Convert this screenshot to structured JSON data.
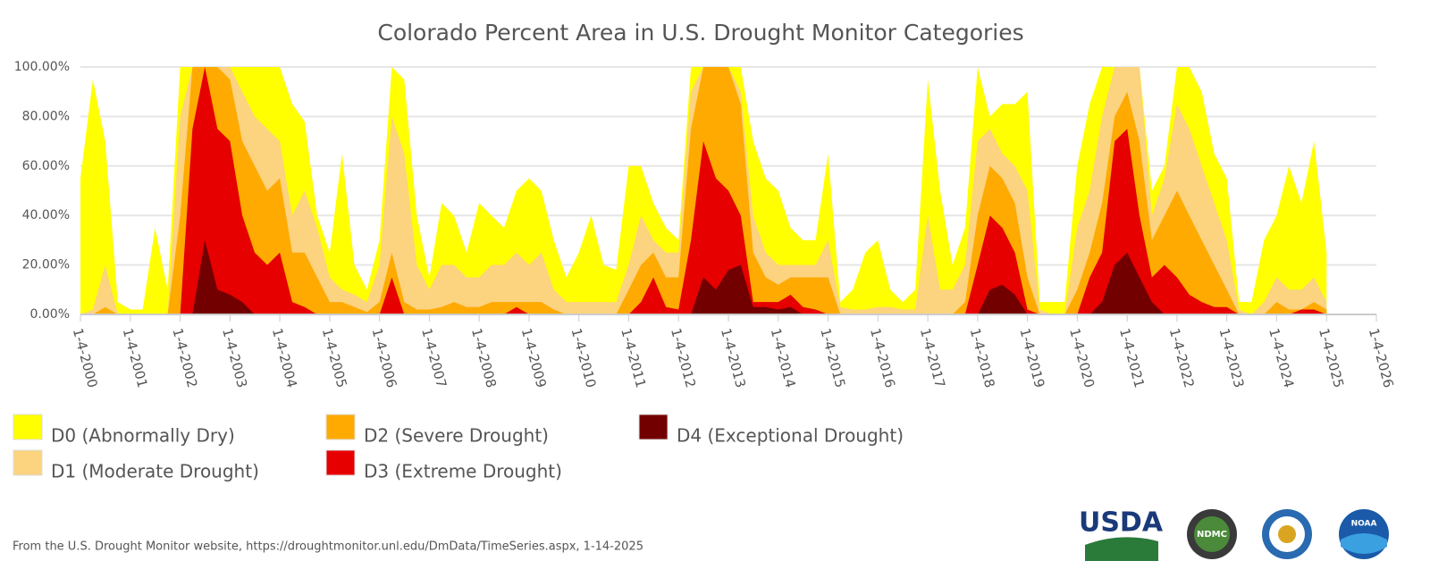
{
  "chart_data": {
    "type": "area",
    "title": "Colorado Percent Area in U.S. Drought Monitor Categories",
    "x": [
      "2000-01-04",
      "2000-04-04",
      "2000-07-04",
      "2000-10-04",
      "2001-01-04",
      "2001-04-04",
      "2001-07-04",
      "2001-10-04",
      "2002-01-04",
      "2002-04-04",
      "2002-07-04",
      "2002-10-04",
      "2003-01-04",
      "2003-04-04",
      "2003-07-04",
      "2003-10-04",
      "2004-01-04",
      "2004-04-04",
      "2004-07-04",
      "2004-10-04",
      "2005-01-04",
      "2005-04-04",
      "2005-07-04",
      "2005-10-04",
      "2006-01-04",
      "2006-04-04",
      "2006-07-04",
      "2006-10-04",
      "2007-01-04",
      "2007-04-04",
      "2007-07-04",
      "2007-10-04",
      "2008-01-04",
      "2008-04-04",
      "2008-07-04",
      "2008-10-04",
      "2009-01-04",
      "2009-04-04",
      "2009-07-04",
      "2009-10-04",
      "2010-01-04",
      "2010-04-04",
      "2010-07-04",
      "2010-10-04",
      "2011-01-04",
      "2011-04-04",
      "2011-07-04",
      "2011-10-04",
      "2012-01-04",
      "2012-04-04",
      "2012-07-04",
      "2012-10-04",
      "2013-01-04",
      "2013-04-04",
      "2013-07-04",
      "2013-10-04",
      "2014-01-04",
      "2014-04-04",
      "2014-07-04",
      "2014-10-04",
      "2015-01-04",
      "2015-04-04",
      "2015-07-04",
      "2015-10-04",
      "2016-01-04",
      "2016-04-04",
      "2016-07-04",
      "2016-10-04",
      "2017-01-04",
      "2017-04-04",
      "2017-07-04",
      "2017-10-04",
      "2018-01-04",
      "2018-04-04",
      "2018-07-04",
      "2018-10-04",
      "2019-01-04",
      "2019-04-04",
      "2019-07-04",
      "2019-10-04",
      "2020-01-04",
      "2020-04-04",
      "2020-07-04",
      "2020-10-04",
      "2021-01-04",
      "2021-04-04",
      "2021-07-04",
      "2021-10-04",
      "2022-01-04",
      "2022-04-04",
      "2022-07-04",
      "2022-10-04",
      "2023-01-04",
      "2023-04-04",
      "2023-07-04",
      "2023-10-04",
      "2024-01-04",
      "2024-04-04",
      "2024-07-04",
      "2024-10-04",
      "2025-01-04"
    ],
    "series": [
      {
        "name": "D0 (Abnormally Dry)",
        "color": "#ffff00",
        "values": [
          55,
          95,
          70,
          5,
          2,
          2,
          35,
          10,
          100,
          100,
          100,
          100,
          100,
          100,
          100,
          100,
          100,
          85,
          78,
          40,
          25,
          65,
          20,
          10,
          30,
          100,
          95,
          40,
          15,
          45,
          40,
          25,
          45,
          40,
          35,
          50,
          55,
          50,
          30,
          15,
          25,
          40,
          20,
          18,
          60,
          60,
          45,
          35,
          30,
          100,
          100,
          100,
          100,
          100,
          70,
          55,
          50,
          35,
          30,
          30,
          65,
          5,
          10,
          25,
          30,
          10,
          5,
          10,
          95,
          50,
          20,
          35,
          100,
          80,
          85,
          85,
          90,
          5,
          5,
          5,
          60,
          85,
          100,
          100,
          100,
          100,
          50,
          60,
          100,
          100,
          90,
          65,
          55,
          5,
          5,
          30,
          40,
          60,
          45,
          70,
          25
        ]
      },
      {
        "name": "D1 (Moderate Drought)",
        "color": "#fcd37f",
        "values": [
          0,
          2,
          20,
          0,
          0,
          0,
          0,
          0,
          80,
          100,
          100,
          100,
          100,
          90,
          80,
          75,
          70,
          40,
          50,
          35,
          15,
          10,
          8,
          5,
          20,
          80,
          65,
          20,
          10,
          20,
          20,
          15,
          15,
          20,
          20,
          25,
          20,
          25,
          10,
          5,
          5,
          5,
          5,
          5,
          20,
          40,
          30,
          25,
          25,
          90,
          100,
          100,
          100,
          90,
          40,
          25,
          20,
          20,
          20,
          20,
          30,
          3,
          2,
          2,
          3,
          3,
          2,
          2,
          40,
          10,
          10,
          20,
          70,
          75,
          65,
          60,
          50,
          2,
          0,
          0,
          35,
          50,
          80,
          100,
          100,
          100,
          40,
          55,
          85,
          75,
          60,
          45,
          30,
          2,
          0,
          5,
          15,
          10,
          10,
          15,
          5
        ]
      },
      {
        "name": "D2 (Severe Drought)",
        "color": "#ffaa00",
        "values": [
          0,
          0,
          3,
          0,
          0,
          0,
          0,
          0,
          40,
          100,
          100,
          100,
          95,
          70,
          60,
          50,
          55,
          25,
          25,
          15,
          5,
          5,
          3,
          1,
          5,
          25,
          5,
          2,
          2,
          3,
          5,
          3,
          3,
          5,
          5,
          5,
          5,
          5,
          2,
          0,
          0,
          0,
          0,
          0,
          10,
          20,
          25,
          15,
          15,
          75,
          100,
          100,
          100,
          85,
          25,
          15,
          12,
          15,
          15,
          15,
          15,
          0,
          0,
          0,
          0,
          0,
          0,
          0,
          0,
          0,
          0,
          5,
          40,
          60,
          55,
          45,
          15,
          0,
          0,
          0,
          10,
          25,
          45,
          80,
          90,
          70,
          30,
          40,
          50,
          40,
          30,
          20,
          10,
          0,
          0,
          0,
          5,
          2,
          2,
          5,
          2
        ]
      },
      {
        "name": "D3 (Extreme Drought)",
        "color": "#e60000",
        "values": [
          0,
          0,
          0,
          0,
          0,
          0,
          0,
          0,
          0,
          75,
          100,
          75,
          70,
          40,
          25,
          20,
          25,
          5,
          3,
          0,
          0,
          0,
          0,
          0,
          0,
          15,
          0,
          0,
          0,
          0,
          0,
          0,
          0,
          0,
          0,
          3,
          0,
          0,
          0,
          0,
          0,
          0,
          0,
          0,
          0,
          5,
          15,
          3,
          2,
          30,
          70,
          55,
          50,
          40,
          5,
          5,
          5,
          8,
          3,
          2,
          0,
          0,
          0,
          0,
          0,
          0,
          0,
          0,
          0,
          0,
          0,
          0,
          20,
          40,
          35,
          25,
          2,
          0,
          0,
          0,
          0,
          15,
          25,
          70,
          75,
          40,
          15,
          20,
          15,
          8,
          5,
          3,
          3,
          0,
          0,
          0,
          0,
          0,
          2,
          2,
          0
        ]
      },
      {
        "name": "D4 (Exceptional Drought)",
        "color": "#730000",
        "values": [
          0,
          0,
          0,
          0,
          0,
          0,
          0,
          0,
          0,
          0,
          30,
          10,
          8,
          5,
          0,
          0,
          0,
          0,
          0,
          0,
          0,
          0,
          0,
          0,
          0,
          0,
          0,
          0,
          0,
          0,
          0,
          0,
          0,
          0,
          0,
          0,
          0,
          0,
          0,
          0,
          0,
          0,
          0,
          0,
          0,
          0,
          0,
          0,
          0,
          0,
          15,
          10,
          18,
          20,
          3,
          3,
          2,
          3,
          0,
          0,
          0,
          0,
          0,
          0,
          0,
          0,
          0,
          0,
          0,
          0,
          0,
          0,
          0,
          10,
          12,
          8,
          0,
          0,
          0,
          0,
          0,
          0,
          5,
          20,
          25,
          15,
          5,
          0,
          0,
          0,
          0,
          0,
          0,
          0,
          0,
          0,
          0,
          0,
          0,
          0,
          0
        ]
      }
    ],
    "xlim": [
      "2000-01-04",
      "2026-01-04"
    ],
    "xticks": [
      {
        "value": "2000-01-04",
        "label": "1-4-2000"
      },
      {
        "value": "2001-01-04",
        "label": "1-4-2001"
      },
      {
        "value": "2002-01-04",
        "label": "1-4-2002"
      },
      {
        "value": "2003-01-04",
        "label": "1-4-2003"
      },
      {
        "value": "2004-01-04",
        "label": "1-4-2004"
      },
      {
        "value": "2005-01-04",
        "label": "1-4-2005"
      },
      {
        "value": "2006-01-04",
        "label": "1-4-2006"
      },
      {
        "value": "2007-01-04",
        "label": "1-4-2007"
      },
      {
        "value": "2008-01-04",
        "label": "1-4-2008"
      },
      {
        "value": "2009-01-04",
        "label": "1-4-2009"
      },
      {
        "value": "2010-01-04",
        "label": "1-4-2010"
      },
      {
        "value": "2011-01-04",
        "label": "1-4-2011"
      },
      {
        "value": "2012-01-04",
        "label": "1-4-2012"
      },
      {
        "value": "2013-01-04",
        "label": "1-4-2013"
      },
      {
        "value": "2014-01-04",
        "label": "1-4-2014"
      },
      {
        "value": "2015-01-04",
        "label": "1-4-2015"
      },
      {
        "value": "2016-01-04",
        "label": "1-4-2016"
      },
      {
        "value": "2017-01-04",
        "label": "1-4-2017"
      },
      {
        "value": "2018-01-04",
        "label": "1-4-2018"
      },
      {
        "value": "2019-01-04",
        "label": "1-4-2019"
      },
      {
        "value": "2020-01-04",
        "label": "1-4-2020"
      },
      {
        "value": "2021-01-04",
        "label": "1-4-2021"
      },
      {
        "value": "2022-01-04",
        "label": "1-4-2022"
      },
      {
        "value": "2023-01-04",
        "label": "1-4-2023"
      },
      {
        "value": "2024-01-04",
        "label": "1-4-2024"
      },
      {
        "value": "2025-01-04",
        "label": "1-4-2025"
      },
      {
        "value": "2026-01-04",
        "label": "1-4-2026"
      }
    ],
    "ylim": [
      0,
      100
    ],
    "yticks": [
      {
        "value": 0,
        "label": "0.00%"
      },
      {
        "value": 20,
        "label": "20.00%"
      },
      {
        "value": 40,
        "label": "40.00%"
      },
      {
        "value": 60,
        "label": "60.00%"
      },
      {
        "value": 80,
        "label": "80.00%"
      },
      {
        "value": 100,
        "label": "100.00%"
      }
    ],
    "grid": true,
    "source": "From the U.S. Drought Monitor website, https://droughtmonitor.unl.edu/DmData/TimeSeries.aspx, 1-14-2025"
  },
  "logos": {
    "usda": "USDA",
    "ndmc": "NDMC",
    "noaa": "NOAA"
  }
}
